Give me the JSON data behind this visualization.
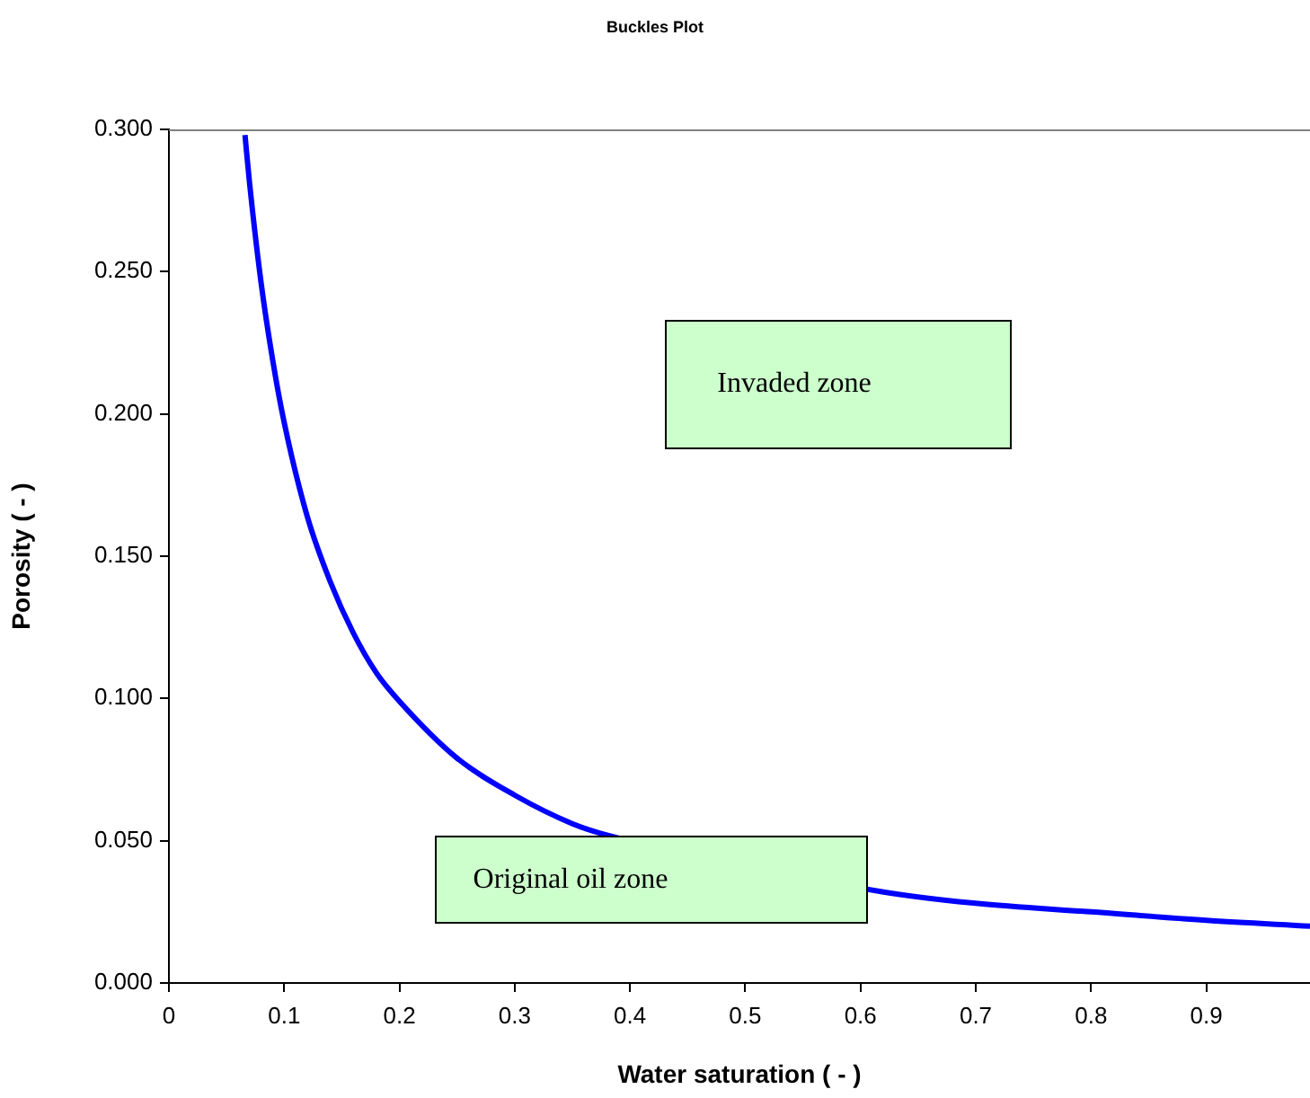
{
  "chart_data": {
    "type": "line",
    "title": "Buckles Plot",
    "xlabel": "Water saturation ( - )",
    "ylabel": "Porosity ( - )",
    "xlim": [
      0,
      0.99
    ],
    "xticks": [
      0,
      0.1,
      0.2,
      0.3,
      0.4,
      0.5,
      0.6,
      0.7,
      0.8,
      0.9
    ],
    "ylim": [
      0,
      0.3
    ],
    "yticks": [
      {
        "value": 0,
        "label": "0.000"
      },
      {
        "value": 0.05,
        "label": "0.050"
      },
      {
        "value": 0.1,
        "label": "0.100"
      },
      {
        "value": 0.15,
        "label": "0.150"
      },
      {
        "value": 0.2,
        "label": "0.200"
      },
      {
        "value": 0.25,
        "label": "0.250"
      },
      {
        "value": 0.3,
        "label": "0.300"
      }
    ],
    "x": [
      0.066,
      0.07,
      0.08,
      0.09,
      0.1,
      0.12,
      0.14,
      0.16,
      0.18,
      0.2,
      0.25,
      0.3,
      0.35,
      0.38,
      0.62,
      0.7,
      0.8,
      0.9,
      0.99
    ],
    "series": [
      {
        "color": "#0000ff",
        "values": [
          0.298,
          0.281,
          0.246,
          0.219,
          0.197,
          0.164,
          0.141,
          0.123,
          0.109,
          0.099,
          0.079,
          0.066,
          0.056,
          0.052,
          0.032,
          0.028,
          0.025,
          0.022,
          0.02
        ]
      }
    ],
    "annotations": [
      "Invaded zone",
      "Original oil zone"
    ],
    "grid": false,
    "legend": false,
    "marker": "none",
    "line_style": "solid"
  }
}
